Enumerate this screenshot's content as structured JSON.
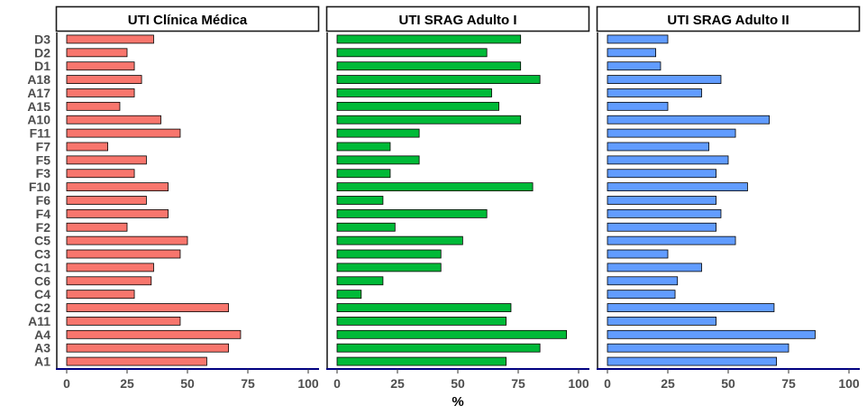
{
  "chart_data": {
    "type": "bar",
    "orientation": "horizontal",
    "xlabel": "%",
    "ylabel": "",
    "xlim": [
      0,
      100
    ],
    "xticks": [
      "0",
      "25",
      "50",
      "75",
      "100"
    ],
    "grid": false,
    "legend": "none",
    "categories": [
      "A1",
      "A3",
      "A4",
      "A11",
      "C2",
      "C4",
      "C6",
      "C1",
      "C3",
      "C5",
      "F2",
      "F4",
      "F6",
      "F10",
      "F3",
      "F5",
      "F7",
      "F11",
      "A10",
      "A15",
      "A17",
      "A18",
      "D1",
      "D2",
      "D3"
    ],
    "series": [
      {
        "name": "UTI Clínica Médica",
        "color": "#F8766D",
        "values": [
          58,
          67,
          72,
          47,
          67,
          28,
          35,
          36,
          47,
          50,
          25,
          42,
          33,
          42,
          28,
          33,
          17,
          47,
          39,
          22,
          28,
          31,
          28,
          25,
          36
        ]
      },
      {
        "name": "UTI SRAG Adulto I",
        "color": "#00BA38",
        "values": [
          70,
          84,
          95,
          70,
          72,
          10,
          19,
          43,
          43,
          52,
          24,
          62,
          19,
          81,
          22,
          34,
          22,
          34,
          76,
          67,
          64,
          84,
          76,
          62,
          76
        ]
      },
      {
        "name": "UTI SRAG Adulto II",
        "color": "#619CFF",
        "values": [
          70,
          75,
          86,
          45,
          69,
          28,
          29,
          39,
          25,
          53,
          45,
          47,
          45,
          58,
          45,
          50,
          42,
          53,
          67,
          25,
          39,
          47,
          22,
          20,
          25
        ]
      }
    ]
  }
}
